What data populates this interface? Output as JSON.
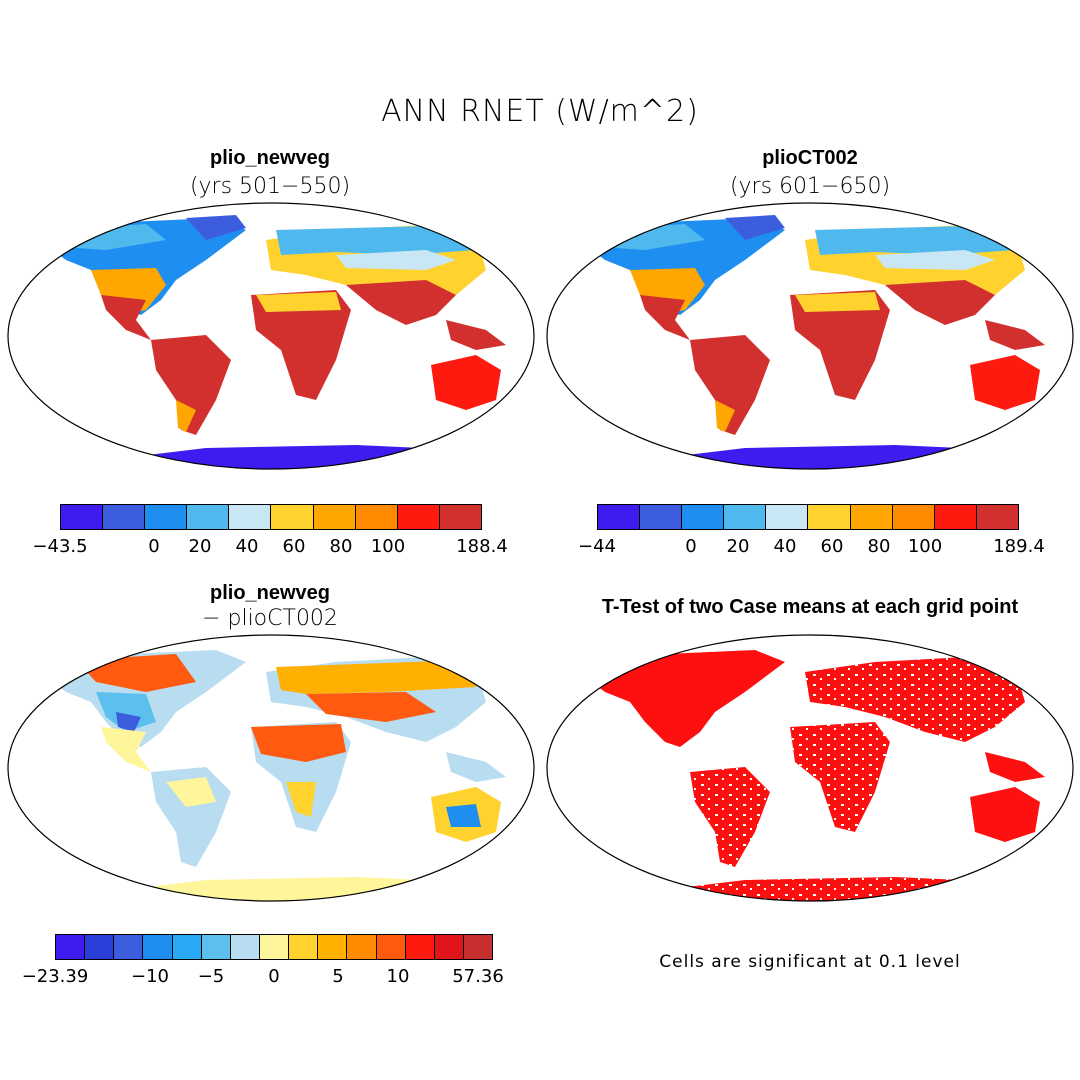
{
  "title": "ANN RNET (W/m^2)",
  "panels": [
    {
      "title": "plio_newveg",
      "subtitle": "(yrs 501−550)",
      "colorbar": {
        "colors": [
          "#3e1cf0",
          "#3c5ede",
          "#1e8ef0",
          "#4fb9ee",
          "#c8e6f4",
          "#ffd22e",
          "#ffa600",
          "#ff8a00",
          "#ff1a0f",
          "#d1302e"
        ],
        "labels": [
          "−43.5",
          "0",
          "20",
          "40",
          "60",
          "80",
          "100",
          "188.4"
        ]
      }
    },
    {
      "title": "plioCT002",
      "subtitle": "(yrs 601−650)",
      "colorbar": {
        "colors": [
          "#3e1cf0",
          "#3c5ede",
          "#1e8ef0",
          "#4fb9ee",
          "#c8e6f4",
          "#ffd22e",
          "#ffa600",
          "#ff8a00",
          "#ff1a0f",
          "#d1302e"
        ],
        "labels": [
          "−44",
          "0",
          "20",
          "40",
          "60",
          "80",
          "100",
          "189.4"
        ]
      }
    },
    {
      "title": "plio_newveg",
      "subtitle": "− plioCT002",
      "colorbar": {
        "colors": [
          "#3e1cf0",
          "#2a3ed8",
          "#3c5ede",
          "#1e8ef0",
          "#29aaf4",
          "#5cc0ee",
          "#b8dcf0",
          "#fff59a",
          "#ffd22e",
          "#ffb000",
          "#ff8a00",
          "#ff5a10",
          "#ff1a0f",
          "#e0141a",
          "#c72e2e"
        ],
        "labels": [
          "−23.39",
          "−10",
          "−5",
          "0",
          "5",
          "10",
          "57.36"
        ]
      }
    },
    {
      "title": "T-Test of two Case means at each grid point",
      "note": "Cells are significant at 0.1 level"
    }
  ]
}
